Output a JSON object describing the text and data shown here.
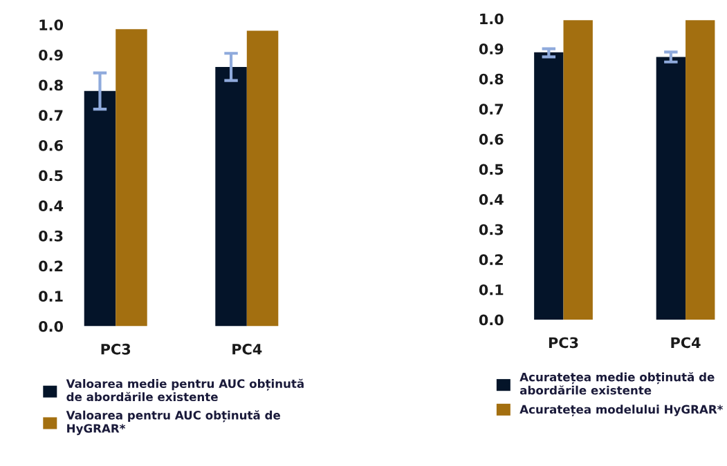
{
  "chart_data": [
    {
      "type": "bar",
      "categories": [
        "PC3",
        "PC4"
      ],
      "series": [
        {
          "name": "Valoarea medie pentru AUC obținută de abordările existente",
          "color": "#041429",
          "values": [
            0.78,
            0.86
          ],
          "errors": [
            [
              0.72,
              0.84
            ],
            [
              0.815,
              0.905
            ]
          ]
        },
        {
          "name": "Valoarea pentru AUC obținută de HyGRAR*",
          "color": "#a36f10",
          "values": [
            0.985,
            0.98
          ]
        }
      ],
      "ylim": [
        0,
        1.0
      ],
      "yticks": [
        {
          "value": 0,
          "label": "0.0"
        },
        {
          "value": 0.1,
          "label": "0.1"
        },
        {
          "value": 0.2,
          "label": "0.2"
        },
        {
          "value": 0.3,
          "label": "0.3"
        },
        {
          "value": 0.4,
          "label": "0.4"
        },
        {
          "value": 0.5,
          "label": "0.5"
        },
        {
          "value": 0.6,
          "label": "0.6"
        },
        {
          "value": 0.7,
          "label": "0.7"
        },
        {
          "value": 0.8,
          "label": "0.8"
        },
        {
          "value": 0.9,
          "label": "0.9"
        },
        {
          "value": 1.0,
          "label": "1.0"
        }
      ],
      "grid": false,
      "legend": "bottom"
    },
    {
      "type": "bar",
      "categories": [
        "PC3",
        "PC4"
      ],
      "series": [
        {
          "name": "Acuratețea medie obținută de abordările existente",
          "color": "#041429",
          "values": [
            0.888,
            0.873
          ],
          "errors": [
            [
              0.873,
              0.9
            ],
            [
              0.856,
              0.889
            ]
          ]
        },
        {
          "name": "Acuratețea modelului HyGRAR*",
          "color": "#a36f10",
          "values": [
            0.995,
            0.995
          ]
        }
      ],
      "ylim": [
        0,
        1.0
      ],
      "yticks": [
        {
          "value": 0,
          "label": "0.0"
        },
        {
          "value": 0.1,
          "label": "0.1"
        },
        {
          "value": 0.2,
          "label": "0.2"
        },
        {
          "value": 0.3,
          "label": "0.3"
        },
        {
          "value": 0.4,
          "label": "0.4"
        },
        {
          "value": 0.5,
          "label": "0.5"
        },
        {
          "value": 0.6,
          "label": "0.6"
        },
        {
          "value": 0.7,
          "label": "0.7"
        },
        {
          "value": 0.8,
          "label": "0.8"
        },
        {
          "value": 0.9,
          "label": "0.9"
        },
        {
          "value": 1.0,
          "label": "1.0"
        }
      ],
      "grid": false,
      "legend": "bottom"
    }
  ]
}
